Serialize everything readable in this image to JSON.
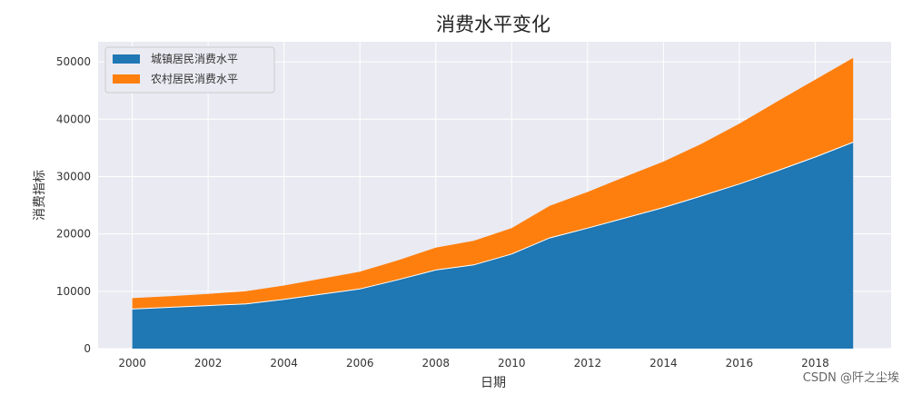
{
  "chart_data": {
    "type": "area",
    "stacked": true,
    "title": "消费水平变化",
    "xlabel": "日期",
    "ylabel": "消费指标",
    "x": [
      2000,
      2001,
      2002,
      2003,
      2004,
      2005,
      2006,
      2007,
      2008,
      2009,
      2010,
      2011,
      2012,
      2013,
      2014,
      2015,
      2016,
      2017,
      2018,
      2019
    ],
    "xticks": [
      "2000",
      "2002",
      "2004",
      "2006",
      "2008",
      "2010",
      "2012",
      "2014",
      "2016",
      "2018"
    ],
    "yticks": [
      "0",
      "10000",
      "20000",
      "30000",
      "40000",
      "50000"
    ],
    "xlim": [
      1999.1,
      2020
    ],
    "ylim": [
      0,
      53500
    ],
    "grid": true,
    "legend_position": "top-left",
    "series": [
      {
        "name": "城镇居民消费水平",
        "color": "#1f77b4",
        "values": [
          6900,
          7200,
          7500,
          7800,
          8600,
          9500,
          10400,
          12000,
          13700,
          14600,
          16500,
          19300,
          21000,
          22800,
          24600,
          26600,
          28700,
          31000,
          33400,
          36000
        ]
      },
      {
        "name": "农村居民消费水平",
        "color": "#ff7f0e",
        "values": [
          1900,
          1950,
          2050,
          2200,
          2400,
          2700,
          3000,
          3400,
          3900,
          4200,
          4500,
          5600,
          6300,
          7200,
          8000,
          9100,
          10500,
          12100,
          13500,
          14700
        ]
      }
    ]
  },
  "watermark": "CSDN @阡之尘埃"
}
